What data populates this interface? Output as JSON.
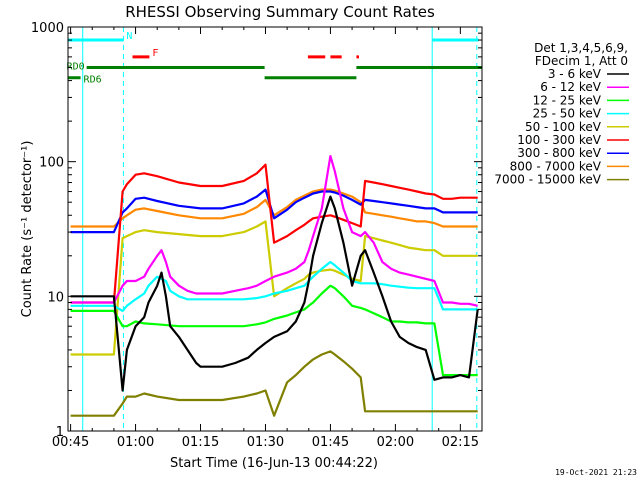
{
  "chart_data": {
    "type": "line",
    "title": "RHESSI Observing Summary Count Rates",
    "xlabel": "Start Time (16-Jun-13 00:44:22)",
    "ylabel": "Count Rate (s⁻¹ detector⁻¹)",
    "y_scale": "log",
    "ylim": [
      1,
      1000
    ],
    "x_range_minutes": [
      44.4,
      140.0
    ],
    "x_ticks": [
      {
        "label": "00:45",
        "minute": 45
      },
      {
        "label": "01:00",
        "minute": 60
      },
      {
        "label": "01:15",
        "minute": 75
      },
      {
        "label": "01:30",
        "minute": 90
      },
      {
        "label": "01:45",
        "minute": 105
      },
      {
        "label": "02:00",
        "minute": 120
      },
      {
        "label": "02:15",
        "minute": 135
      }
    ],
    "y_ticks": [
      {
        "label": "1",
        "value": 1
      },
      {
        "label": "10",
        "value": 10
      },
      {
        "label": "100",
        "value": 100
      },
      {
        "label": "1000",
        "value": 1000
      }
    ],
    "legend_title": [
      "Det 1,3,4,5,6,9,",
      "FDecim 1, Att 0"
    ],
    "legend_placement": "right",
    "series": [
      {
        "name": "3 - 6 keV",
        "color": "#000000",
        "x": [
          45,
          48,
          50,
          55,
          57,
          58,
          60,
          62,
          63,
          65,
          66,
          67,
          68,
          70,
          72,
          74,
          75,
          78,
          80,
          83,
          86,
          88,
          90,
          92,
          95,
          97,
          99,
          100,
          101,
          103,
          105,
          106,
          108,
          110,
          112,
          113,
          115,
          117,
          119,
          121,
          123,
          125,
          127,
          129,
          131,
          133,
          135,
          137,
          139
        ],
        "y": [
          10,
          10,
          10,
          10,
          2,
          4,
          6,
          7,
          9,
          12,
          15,
          10,
          6,
          5,
          4,
          3.2,
          3,
          3,
          3,
          3.2,
          3.5,
          4,
          4.5,
          5,
          5.5,
          6.5,
          9,
          13,
          20,
          35,
          55,
          45,
          25,
          12,
          20,
          22,
          15,
          10,
          6.5,
          5,
          4.5,
          4.2,
          4,
          2.4,
          2.5,
          2.5,
          2.6,
          2.5,
          8
        ]
      },
      {
        "name": "6 - 12 keV",
        "color": "#ff00ff",
        "x": [
          45,
          48,
          50,
          55,
          57,
          58,
          60,
          62,
          63,
          65,
          66,
          67,
          68,
          70,
          72,
          74,
          75,
          78,
          80,
          83,
          86,
          88,
          90,
          92,
          95,
          97,
          99,
          100,
          101,
          103,
          105,
          106,
          108,
          110,
          112,
          113,
          115,
          117,
          119,
          121,
          123,
          125,
          127,
          129,
          131,
          133,
          135,
          137,
          139
        ],
        "y": [
          9,
          9,
          9,
          9,
          12,
          13,
          13,
          14,
          16,
          20,
          22,
          18,
          14,
          12,
          11,
          10.5,
          10.5,
          10.5,
          10.5,
          11,
          11.5,
          12,
          13,
          14,
          15,
          16,
          18,
          22,
          28,
          45,
          110,
          85,
          45,
          30,
          28,
          30,
          25,
          18,
          16,
          15,
          14.5,
          14,
          13.5,
          13,
          9,
          9,
          8.8,
          8.8,
          8.5
        ]
      },
      {
        "name": "12 - 25 keV",
        "color": "#00ff00",
        "x": [
          45,
          48,
          50,
          55,
          57,
          58,
          60,
          62,
          65,
          70,
          75,
          80,
          85,
          88,
          90,
          92,
          95,
          97,
          99,
          100,
          101,
          103,
          105,
          106,
          108,
          110,
          112,
          113,
          115,
          117,
          119,
          121,
          123,
          125,
          127,
          129,
          131,
          133,
          135,
          137,
          139
        ],
        "y": [
          7.8,
          7.8,
          7.8,
          7.8,
          6,
          6,
          6.5,
          6.3,
          6.2,
          6,
          6,
          6,
          6,
          6.2,
          6.4,
          6.8,
          7.2,
          7.6,
          8,
          8.5,
          9,
          10.5,
          12,
          11.5,
          10,
          8.5,
          8.2,
          8,
          7.5,
          7,
          6.5,
          6.5,
          6.4,
          6.4,
          6.3,
          6.3,
          2.6,
          2.6,
          2.6,
          2.6,
          2.6
        ]
      },
      {
        "name": "25 - 50 keV",
        "color": "#00ffff",
        "x": [
          45,
          48,
          50,
          55,
          57,
          58,
          60,
          62,
          63,
          65,
          67,
          68,
          70,
          72,
          75,
          80,
          85,
          88,
          90,
          92,
          95,
          97,
          99,
          100,
          101,
          103,
          105,
          106,
          108,
          110,
          112,
          113,
          115,
          117,
          119,
          121,
          123,
          125,
          127,
          129,
          131,
          133,
          135,
          137,
          139
        ],
        "y": [
          8.5,
          8.5,
          8.5,
          8.5,
          7.8,
          8.5,
          9.5,
          10.5,
          12,
          14,
          13,
          11,
          10,
          9.5,
          9.5,
          9.5,
          9.5,
          9.7,
          10,
          10.5,
          11,
          11.5,
          12,
          13,
          14,
          16,
          18,
          17,
          15,
          13,
          12.5,
          12.5,
          12.5,
          12.3,
          12,
          11.8,
          11.6,
          11.5,
          11.5,
          11.5,
          8,
          8,
          8,
          8,
          8
        ]
      },
      {
        "name": "50 - 100 keV",
        "color": "#cccc00",
        "x": [
          45,
          48,
          50,
          55,
          57,
          58,
          60,
          62,
          65,
          70,
          75,
          80,
          85,
          88,
          90,
          92,
          95,
          97,
          99,
          100,
          101,
          103,
          105,
          106,
          108,
          110,
          112,
          113,
          115,
          117,
          119,
          121,
          123,
          125,
          127,
          129,
          131,
          133,
          135,
          137,
          139
        ],
        "y": [
          3.7,
          3.7,
          3.7,
          3.7,
          27,
          28,
          30,
          31,
          30,
          29,
          28,
          28,
          30,
          33,
          36,
          10,
          11.5,
          12.5,
          13.5,
          14.5,
          15,
          15.5,
          15.8,
          15.5,
          14.5,
          13.5,
          13,
          28,
          27,
          26,
          25,
          24,
          23,
          22.5,
          22,
          22,
          20,
          20,
          20,
          20,
          20
        ]
      },
      {
        "name": "100 - 300 keV",
        "color": "#ff0000",
        "x": [
          45,
          48,
          50,
          55,
          57,
          58,
          60,
          62,
          65,
          70,
          75,
          80,
          85,
          88,
          90,
          92,
          95,
          97,
          99,
          100,
          101,
          103,
          105,
          106,
          108,
          110,
          112,
          113,
          115,
          117,
          119,
          121,
          123,
          125,
          127,
          129,
          131,
          133,
          135,
          137,
          139
        ],
        "y": [
          9,
          9,
          9,
          9,
          60,
          68,
          80,
          82,
          78,
          70,
          66,
          66,
          72,
          82,
          95,
          25,
          28,
          31,
          34,
          36,
          38,
          39,
          40,
          39,
          37,
          35,
          33,
          72,
          70,
          68,
          66,
          64,
          62,
          60,
          58,
          57,
          53,
          53,
          54,
          54,
          54
        ]
      },
      {
        "name": "300 - 800 keV",
        "color": "#0000ff",
        "x": [
          45,
          48,
          50,
          55,
          57,
          58,
          60,
          62,
          65,
          70,
          75,
          80,
          85,
          88,
          90,
          92,
          95,
          97,
          99,
          100,
          101,
          103,
          105,
          106,
          108,
          110,
          112,
          113,
          115,
          117,
          119,
          121,
          123,
          125,
          127,
          129,
          131,
          133,
          135,
          137,
          139
        ],
        "y": [
          30,
          30,
          30,
          30,
          42,
          45,
          53,
          54,
          51,
          47,
          45,
          45,
          49,
          55,
          62,
          38,
          44,
          50,
          54,
          56,
          58,
          60,
          60,
          59,
          56,
          52,
          48,
          52,
          51,
          50,
          49,
          48,
          47,
          46,
          45,
          45,
          42,
          42,
          42,
          42,
          42
        ]
      },
      {
        "name": "800 - 7000 keV",
        "color": "#ff8800",
        "x": [
          45,
          48,
          50,
          55,
          57,
          58,
          60,
          62,
          65,
          70,
          75,
          80,
          85,
          88,
          90,
          92,
          95,
          97,
          99,
          100,
          101,
          103,
          105,
          106,
          108,
          110,
          112,
          113,
          115,
          117,
          119,
          121,
          123,
          125,
          127,
          129,
          131,
          133,
          135,
          137,
          139
        ],
        "y": [
          33,
          33,
          33,
          33,
          38,
          40,
          44,
          45,
          43,
          40,
          38,
          38,
          41,
          46,
          52,
          40,
          46,
          52,
          56,
          58,
          60,
          62,
          62,
          61,
          58,
          55,
          50,
          42,
          41,
          40,
          39,
          38,
          37,
          36,
          36,
          35,
          33,
          33,
          33,
          33,
          33
        ]
      },
      {
        "name": "7000 - 15000 keV",
        "color": "#808000",
        "x": [
          45,
          48,
          50,
          55,
          57,
          58,
          60,
          62,
          65,
          70,
          75,
          80,
          85,
          88,
          90,
          92,
          95,
          97,
          99,
          100,
          101,
          103,
          105,
          106,
          108,
          110,
          112,
          113,
          115,
          117,
          119,
          121,
          123,
          125,
          127,
          129,
          131,
          133,
          135,
          137,
          139
        ],
        "y": [
          1.3,
          1.3,
          1.3,
          1.3,
          1.6,
          1.8,
          1.8,
          1.9,
          1.8,
          1.7,
          1.7,
          1.7,
          1.8,
          1.9,
          2,
          1.3,
          2.3,
          2.6,
          3,
          3.2,
          3.4,
          3.7,
          3.9,
          3.7,
          3.3,
          2.9,
          2.5,
          1.4,
          1.4,
          1.4,
          1.4,
          1.4,
          1.4,
          1.4,
          1.4,
          1.4,
          1.4,
          1.4,
          1.4,
          1.4,
          1.4
        ]
      }
    ],
    "flag_bars": [
      {
        "label": "N",
        "color": "#00ffff",
        "segments": [
          [
            44.4,
            57.2
          ],
          [
            128.5,
            139.2
          ]
        ],
        "level": 800
      },
      {
        "label": "F",
        "color": "#ff0000",
        "segments": [
          [
            59.3,
            63.2
          ],
          [
            99.8,
            103.8
          ],
          [
            105,
            107.6
          ],
          [
            111,
            111.6
          ]
        ],
        "level": 600
      },
      {
        "label": "RD0",
        "color": "#008000",
        "segments": [
          [
            48.7,
            89.8
          ],
          [
            111,
            140
          ]
        ],
        "level": 500
      },
      {
        "label": "RD6",
        "color": "#008000",
        "segments": [
          [
            44.4,
            47.3
          ],
          [
            89.8,
            111
          ]
        ],
        "level": 420
      }
    ],
    "vertical_lines": [
      {
        "minute": 47.8,
        "style": "solid",
        "color": "#00ffff"
      },
      {
        "minute": 57.2,
        "style": "dashed",
        "color": "#00ffff"
      },
      {
        "minute": 128.5,
        "style": "solid",
        "color": "#00ffff"
      },
      {
        "minute": 138.8,
        "style": "dashed",
        "color": "#00ffff"
      }
    ],
    "timestamp": "19-Oct-2021 21:23"
  }
}
